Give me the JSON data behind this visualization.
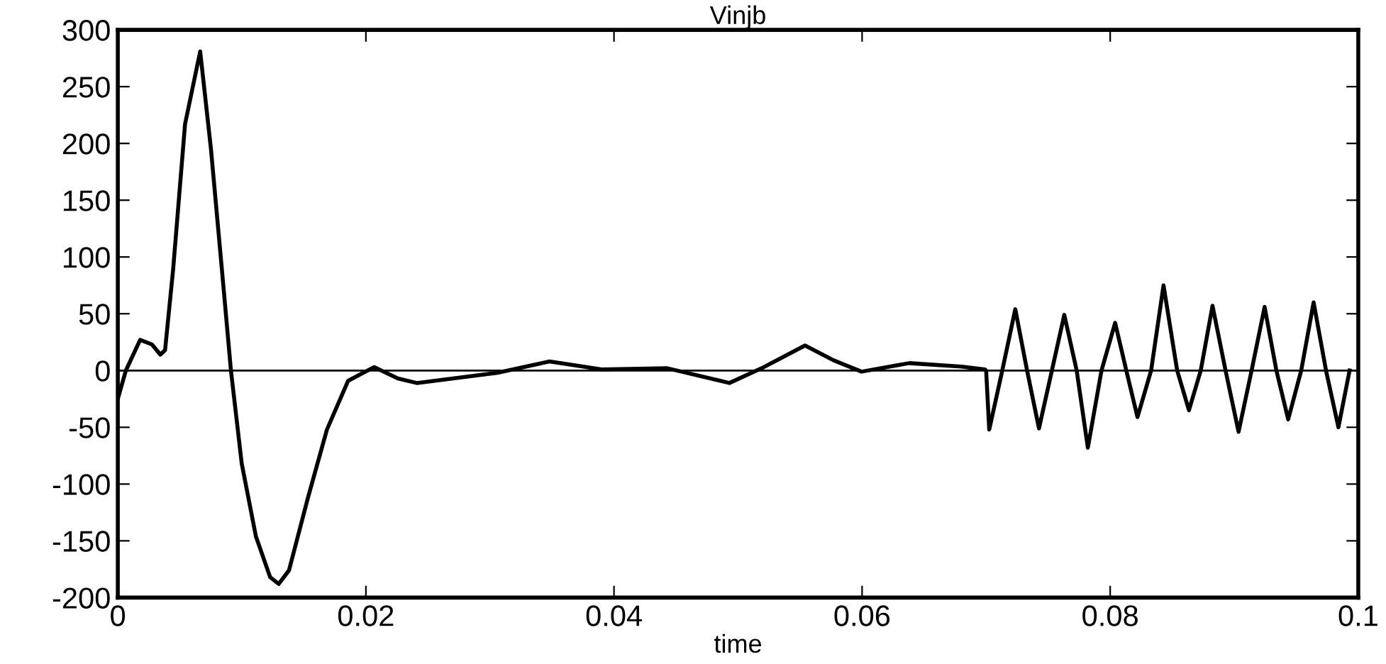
{
  "chart_data": {
    "type": "line",
    "title": "Vinjb",
    "xlabel": "time",
    "x": [
      0,
      0.00065,
      0.0018,
      0.00275,
      0.00343,
      0.00381,
      0.00446,
      0.00542,
      0.00664,
      0.00751,
      0.00839,
      0.00912,
      0.00999,
      0.01113,
      0.01228,
      0.01297,
      0.0138,
      0.01533,
      0.01686,
      0.01857,
      0.02067,
      0.02258,
      0.0241,
      0.0306,
      0.0348,
      0.039,
      0.0443,
      0.0493,
      0.0519,
      0.0554,
      0.0577,
      0.05996,
      0.0638,
      0.068,
      0.0699,
      0.07,
      0.07025,
      0.0713,
      0.07235,
      0.0733,
      0.07426,
      0.0753,
      0.0763,
      0.0773,
      0.0782,
      0.0793,
      0.0804,
      0.0813,
      0.0822,
      0.0833,
      0.0843,
      0.0854,
      0.08635,
      0.0873,
      0.08825,
      0.0893,
      0.09035,
      0.0914,
      0.09245,
      0.0934,
      0.09435,
      0.0954,
      0.0964,
      0.0974,
      0.0984,
      0.0993
    ],
    "series": [
      {
        "color": "#000000",
        "values": [
          -25,
          0,
          27,
          23,
          14,
          18,
          89,
          217,
          281,
          195,
          89,
          0,
          -82,
          -146,
          -182,
          -188,
          -176,
          -112,
          -52,
          -9,
          3,
          -7,
          -11,
          -2,
          8,
          1,
          2,
          -11,
          2,
          22,
          9,
          -1,
          6.5,
          3.5,
          1,
          0,
          -52,
          0,
          54,
          0,
          -51,
          0,
          49,
          0,
          -68,
          0,
          42,
          0,
          -41,
          0,
          75,
          0,
          -35,
          0,
          57,
          0,
          -54,
          0,
          56,
          0,
          -43,
          0,
          60,
          0,
          -50,
          0
        ]
      }
    ],
    "xlim": [
      0,
      0.1
    ],
    "xticks": [
      0,
      0.02,
      0.04,
      0.06,
      0.08,
      0.1
    ],
    "ylim": [
      -200,
      300
    ],
    "yticks": [
      -200,
      -150,
      -100,
      -50,
      0,
      50,
      100,
      150,
      200,
      250,
      300
    ],
    "ref_lines": [
      {
        "axis": "y",
        "value": 0,
        "color": "#000000"
      }
    ],
    "grid": false,
    "legend": false,
    "marker": "none",
    "line_style": "solid"
  }
}
